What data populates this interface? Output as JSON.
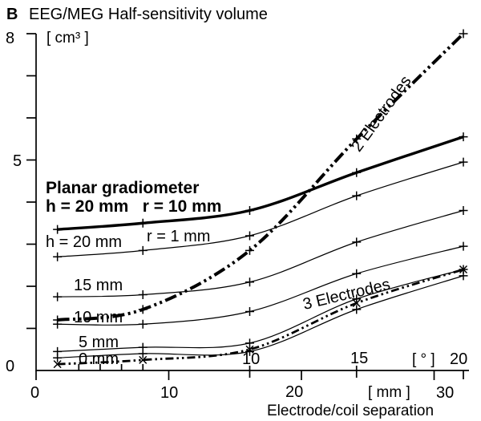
{
  "chart_data": {
    "type": "line",
    "panel_label": "B",
    "title": "EEG/MEG Half-sensitivity volume",
    "y_axis": {
      "unit": "[ cm³ ]",
      "min": 0,
      "max": 8,
      "labeled_ticks": [
        0,
        5,
        8
      ],
      "minor_ticks": [
        1,
        2,
        3,
        4,
        6,
        7
      ],
      "tick_labels": {
        "t8": "8",
        "t5": "5",
        "t0": "0"
      }
    },
    "x_axis": {
      "title": "Electrode/coil separation",
      "degree_scale": {
        "unit": "[ ° ]",
        "labeled_ticks": [
          10,
          15,
          20
        ],
        "minor_ticks": [
          2,
          3,
          4,
          5
        ],
        "labels": {
          "d10": "10",
          "d15": "15",
          "d20": "20"
        }
      },
      "mm_scale": {
        "unit": "[ mm ]",
        "labeled_ticks": [
          0,
          10,
          20,
          30
        ],
        "labels": {
          "m0": "0",
          "m10": "10",
          "m20": "20",
          "m30": "30"
        }
      }
    },
    "x_deg": [
      1,
      5,
      10,
      15,
      20
    ],
    "series": [
      {
        "name": "2 Electrodes",
        "style": "dashdotdot-thick",
        "marker": "plus",
        "values": [
          1.2,
          1.45,
          2.85,
          5.5,
          8.0
        ]
      },
      {
        "name": "Planar gradiometer",
        "detail": "h = 20 mm  r = 10 mm",
        "style": "thick",
        "marker": "plus",
        "values": [
          3.35,
          3.5,
          3.8,
          4.7,
          5.55
        ]
      },
      {
        "name": "h = 20 mm",
        "group": "r = 1 mm",
        "style": "thin",
        "marker": "plus",
        "values": [
          2.7,
          2.85,
          3.2,
          4.15,
          4.95
        ]
      },
      {
        "name": "15 mm",
        "group": "r = 1 mm",
        "style": "thin",
        "marker": "plus",
        "values": [
          1.75,
          1.8,
          2.1,
          3.05,
          3.8
        ]
      },
      {
        "name": "10 mm",
        "group": "r = 1 mm",
        "style": "thin",
        "marker": "plus",
        "values": [
          1.1,
          1.1,
          1.4,
          2.3,
          2.95
        ]
      },
      {
        "name": "5 mm",
        "group": "r = 1 mm",
        "style": "thin",
        "marker": "plus",
        "values": [
          0.45,
          0.55,
          0.65,
          1.7,
          2.4
        ]
      },
      {
        "name": "0 mm",
        "group": "r = 1 mm",
        "style": "thin",
        "marker": "plus",
        "values": [
          0.3,
          0.4,
          0.45,
          1.45,
          2.25
        ]
      },
      {
        "name": "3 Electrodes",
        "style": "dashdotdot",
        "marker": "cross",
        "values": [
          0.15,
          0.25,
          0.5,
          1.6,
          2.4
        ]
      }
    ],
    "curve_labels": {
      "planar_title": "Planar gradiometer",
      "planar_sub": "h = 20 mm   r = 10 mm",
      "r1": "r = 1 mm",
      "h20": "h = 20 mm",
      "h15": "15 mm",
      "h10": "10 mm",
      "h5": "5 mm",
      "h0": "0 mm",
      "two_electrodes": "2 Electrodes",
      "three_electrodes": "3 Electrodes"
    },
    "colors": {
      "ink": "#000000",
      "background": "#ffffff"
    }
  }
}
